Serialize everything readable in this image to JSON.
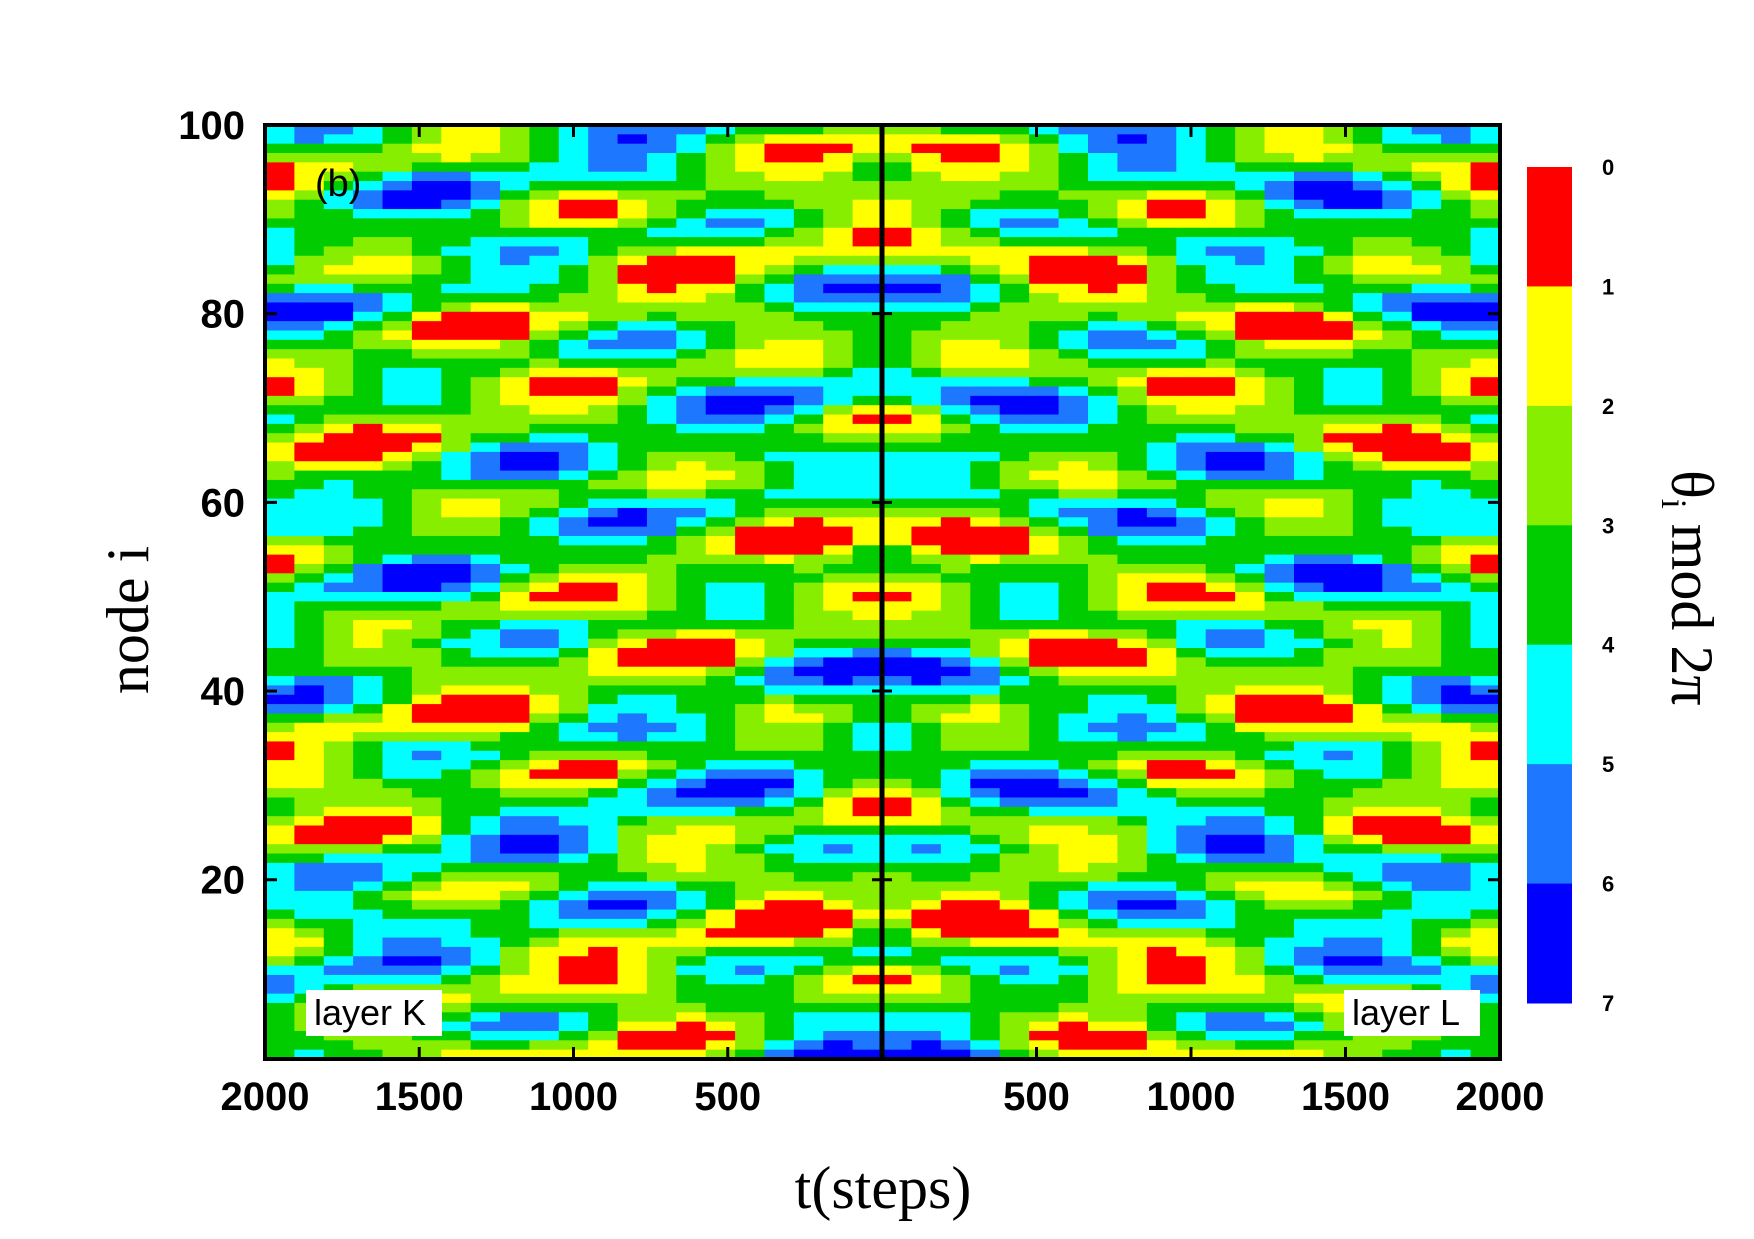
{
  "chart_data": {
    "type": "heatmap",
    "panel_label": "(b)",
    "xlabel": "t(steps)",
    "ylabel": "node i",
    "colorbar_title_main": "θ",
    "colorbar_title_sub": "i",
    "colorbar_title_rest": " mod 2π",
    "ylim": [
      1,
      100
    ],
    "y_ticks": [
      "20",
      "40",
      "60",
      "80",
      "100"
    ],
    "y_tick_values": [
      20,
      40,
      60,
      80,
      100
    ],
    "panels": [
      {
        "name": "layer K",
        "x_direction": "reversed",
        "xlim": [
          2000,
          0
        ],
        "x_ticks": [
          "2000",
          "1500",
          "1000",
          "500"
        ],
        "x_tick_values": [
          2000,
          1500,
          1000,
          500
        ]
      },
      {
        "name": "layer L",
        "x_direction": "normal",
        "xlim": [
          0,
          2000
        ],
        "x_ticks": [
          "500",
          "1000",
          "1500",
          "2000"
        ],
        "x_tick_values": [
          500,
          1000,
          1500,
          2000
        ]
      }
    ],
    "colorbar": {
      "levels": [
        "0",
        "1",
        "2",
        "3",
        "4",
        "5",
        "6",
        "7"
      ],
      "colors": [
        "#ff0000",
        "#ffff00",
        "#88ee00",
        "#00cc00",
        "#00ffff",
        "#1e78ff",
        "#0000ff"
      ]
    },
    "grid": false,
    "legend": "right"
  }
}
